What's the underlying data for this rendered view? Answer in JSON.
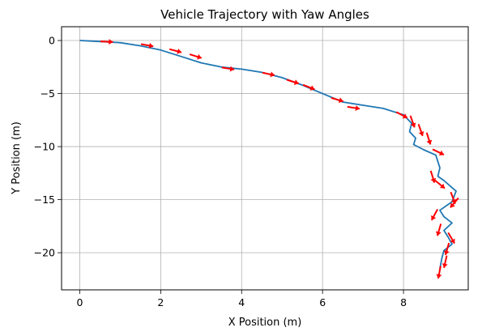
{
  "chart_data": {
    "type": "line",
    "title": "Vehicle Trajectory with Yaw Angles",
    "xlabel": "X Position (m)",
    "ylabel": "Y Position (m)",
    "xlim": [
      -0.45,
      9.6
    ],
    "ylim": [
      -23.5,
      1.3
    ],
    "xticks": [
      0,
      2,
      4,
      6,
      8
    ],
    "yticks": [
      0,
      -5,
      -10,
      -15,
      -20
    ],
    "xtick_labels": [
      "0",
      "2",
      "4",
      "6",
      "8"
    ],
    "ytick_labels": [
      "0",
      "−5",
      "−10",
      "−15",
      "−20"
    ],
    "grid": true,
    "colors": {
      "trajectory": "#1f77b4",
      "yaw_arrows": "#ff0000"
    },
    "series": [
      {
        "x": [
          0.0,
          0.5,
          1.0,
          1.5,
          2.0,
          2.5,
          3.0,
          3.5,
          4.0,
          4.5,
          5.0,
          5.5,
          6.0,
          6.5,
          7.0,
          7.5,
          8.0,
          8.2,
          8.15,
          8.3,
          8.25,
          8.5,
          8.8,
          8.9,
          8.85,
          9.0,
          9.3,
          9.2,
          8.9,
          9.0,
          9.2,
          9.0,
          9.1,
          9.2,
          9.0,
          8.95,
          8.9
        ],
        "y": [
          0.0,
          -0.1,
          -0.2,
          -0.5,
          -0.9,
          -1.5,
          -2.1,
          -2.5,
          -2.7,
          -3.0,
          -3.5,
          -4.2,
          -5.0,
          -5.8,
          -6.1,
          -6.4,
          -7.0,
          -7.8,
          -8.6,
          -9.2,
          -9.8,
          -10.3,
          -10.8,
          -12.0,
          -12.8,
          -13.2,
          -14.2,
          -15.2,
          -16.0,
          -16.6,
          -17.2,
          -17.9,
          -18.5,
          -19.2,
          -19.8,
          -20.5,
          -21.5
        ],
        "yaw_x": [
          0.6,
          1.6,
          2.3,
          2.8,
          3.6,
          4.6,
          5.2,
          5.6,
          6.3,
          6.7,
          7.9,
          8.2,
          8.4,
          8.6,
          8.8,
          8.7,
          8.85,
          9.2,
          9.3,
          8.8,
          8.9,
          9.15,
          9.1,
          9.05,
          8.9
        ],
        "yaw_y": [
          -0.1,
          -0.4,
          -0.9,
          -1.4,
          -2.6,
          -3.1,
          -3.8,
          -4.3,
          -5.5,
          -6.3,
          -6.9,
          -7.4,
          -8.2,
          -9.0,
          -10.4,
          -12.6,
          -13.4,
          -14.6,
          -15.1,
          -16.2,
          -17.6,
          -18.4,
          -19.4,
          -20.6,
          -21.6
        ]
      }
    ]
  }
}
